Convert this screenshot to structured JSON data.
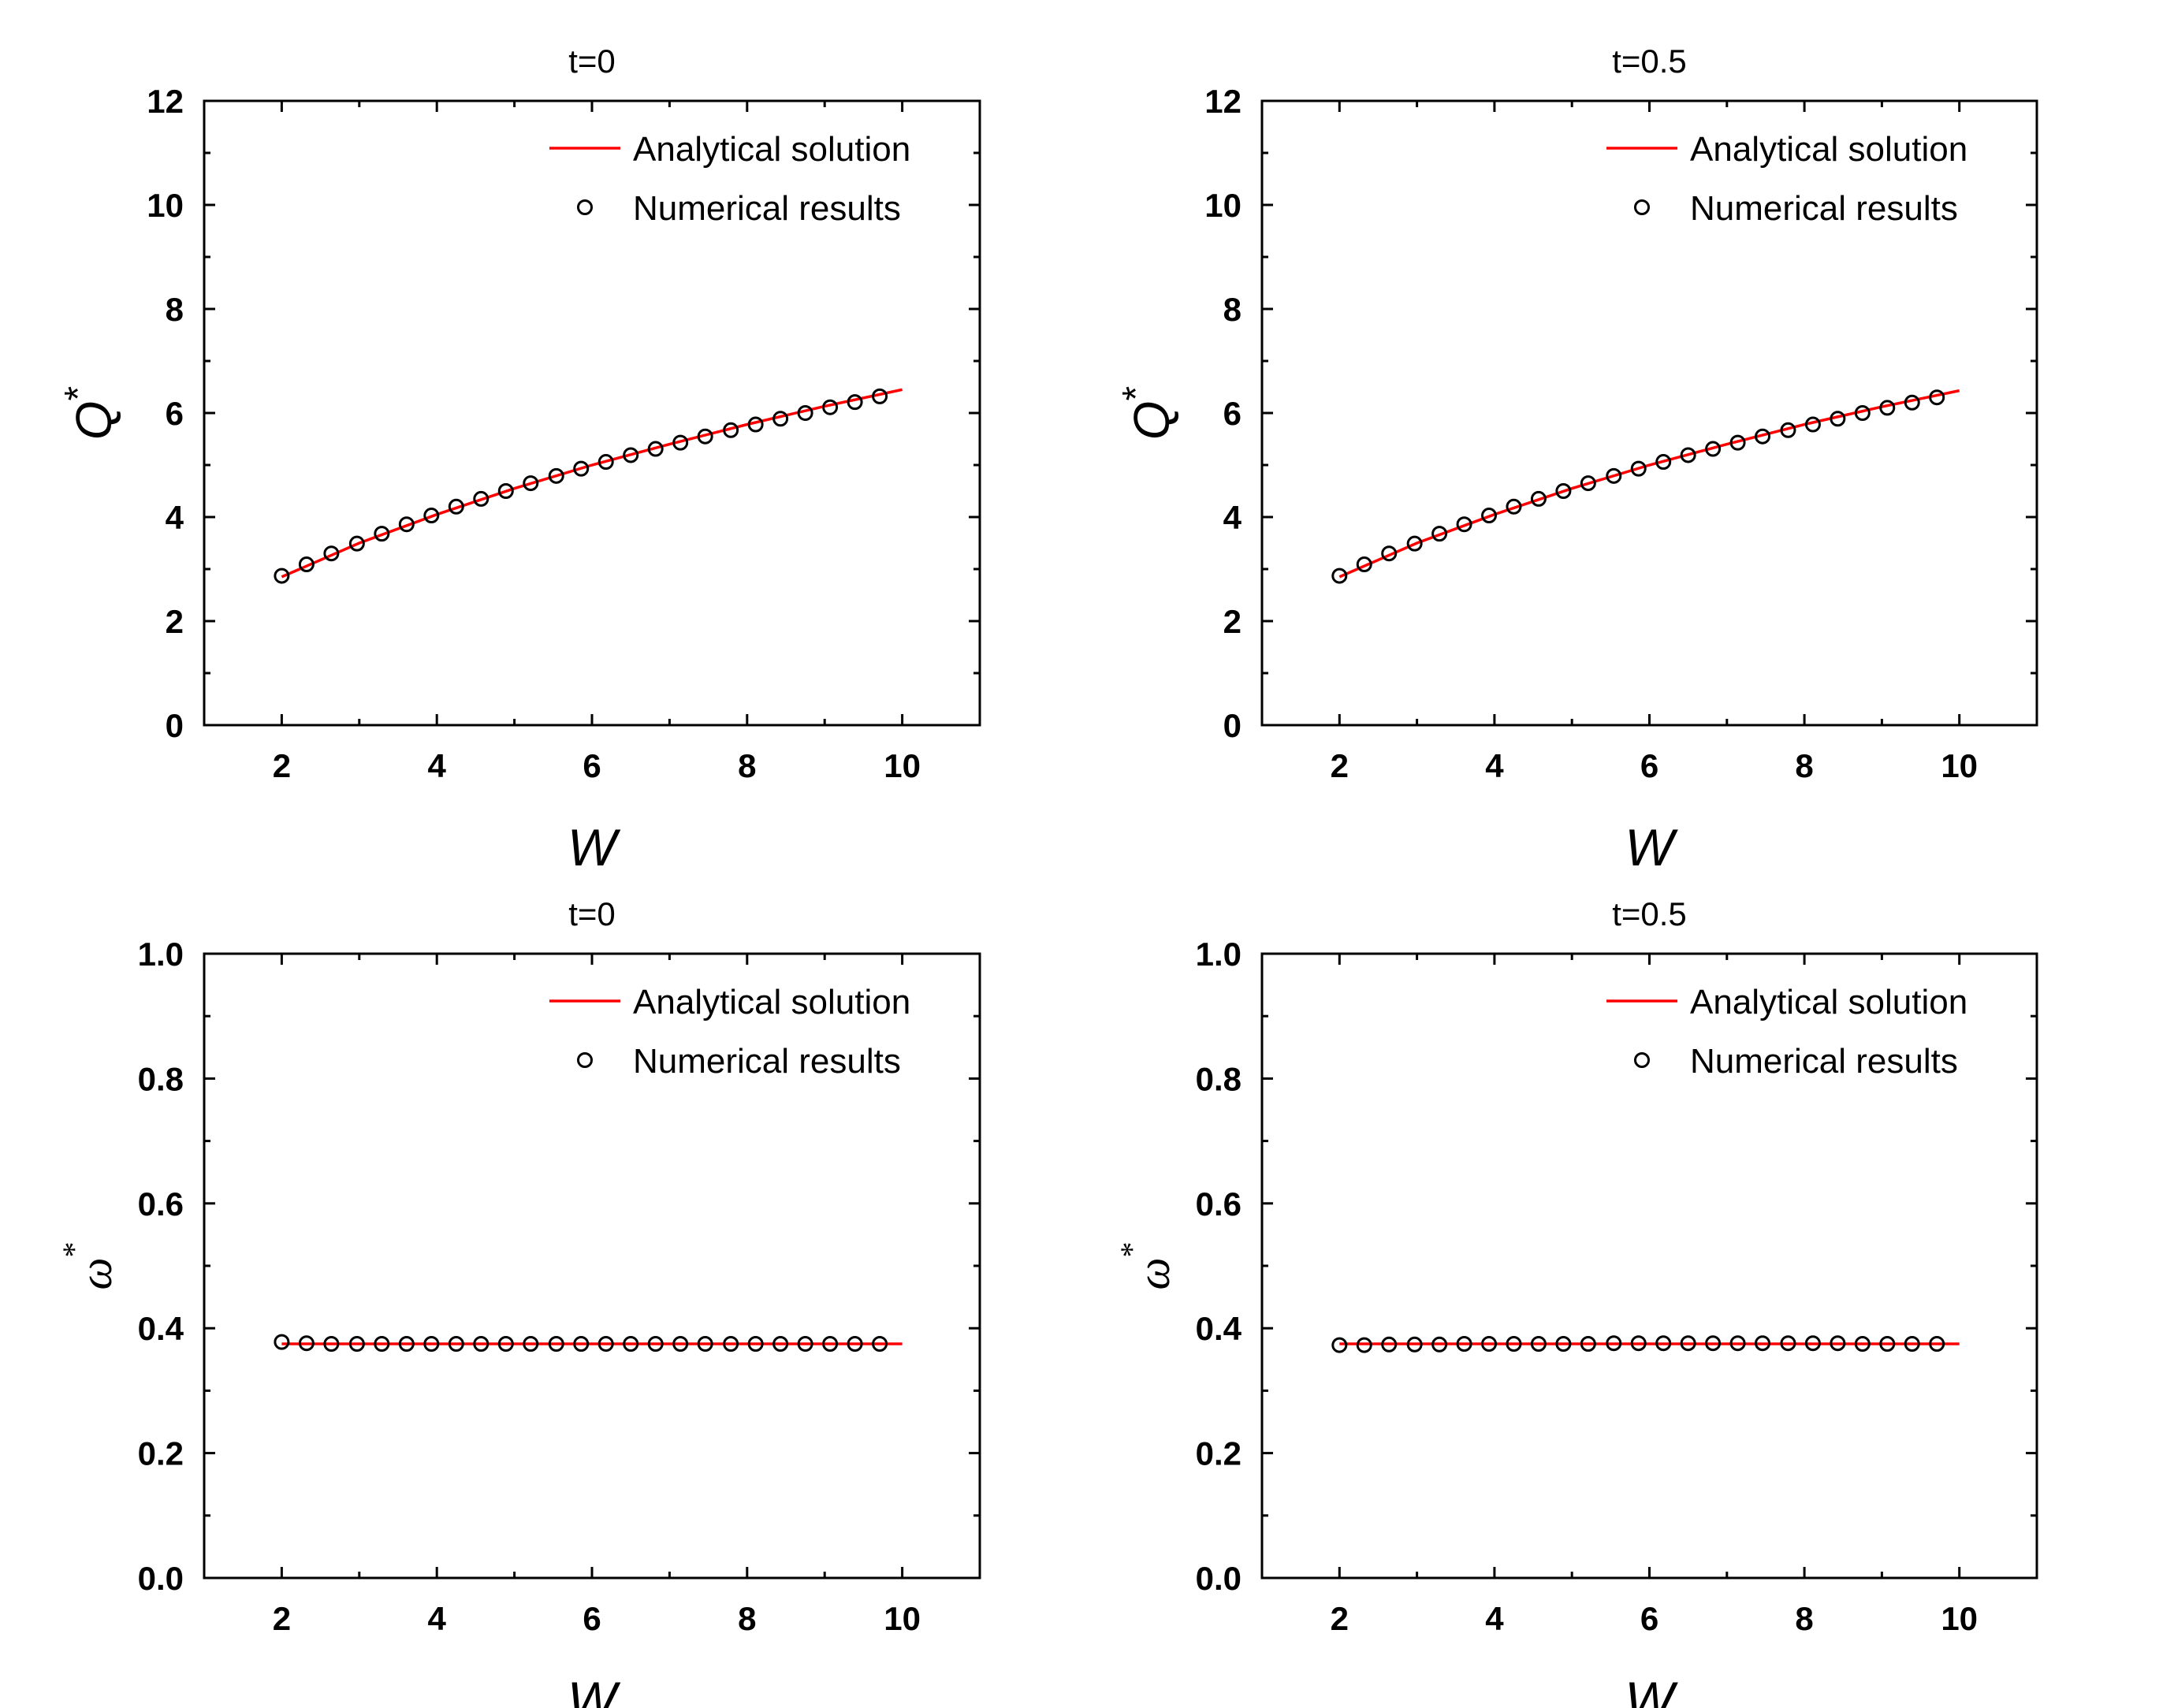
{
  "figure_title": "",
  "chart_data": [
    {
      "type": "line+scatter",
      "title": "t=0",
      "xlabel": "W",
      "ylabel": "Q",
      "ylabel_sup": "*",
      "xlim": [
        1,
        11
      ],
      "ylim": [
        0,
        12
      ],
      "xticks": [
        2,
        4,
        6,
        8,
        10
      ],
      "yticks": [
        0,
        2,
        4,
        6,
        8,
        10,
        12
      ],
      "ytick_labels": [
        "0",
        "2",
        "4",
        "6",
        "8",
        "10",
        "12"
      ],
      "legend": [
        "Analytical solution",
        "Numerical results"
      ],
      "legend_position": "top-right",
      "series": [
        {
          "name": "Analytical solution",
          "kind": "line",
          "color": "#ff0000",
          "x": [
            2,
            3,
            4,
            5,
            6,
            7,
            8,
            9,
            10
          ],
          "y": [
            2.85,
            3.5,
            4.05,
            4.55,
            5.0,
            5.4,
            5.78,
            6.13,
            6.45
          ]
        },
        {
          "name": "Numerical results",
          "kind": "scatter",
          "color": "#000000",
          "x": [
            2.0,
            2.32,
            2.64,
            2.97,
            3.29,
            3.61,
            3.93,
            4.25,
            4.57,
            4.89,
            5.21,
            5.54,
            5.86,
            6.18,
            6.5,
            6.82,
            7.14,
            7.46,
            7.79,
            8.11,
            8.43,
            8.75,
            9.07,
            9.39,
            9.71
          ],
          "y": [
            2.87,
            3.09,
            3.3,
            3.49,
            3.68,
            3.86,
            4.03,
            4.2,
            4.35,
            4.5,
            4.65,
            4.79,
            4.93,
            5.06,
            5.19,
            5.31,
            5.43,
            5.55,
            5.67,
            5.78,
            5.89,
            6.0,
            6.11,
            6.21,
            6.32
          ]
        }
      ]
    },
    {
      "type": "line+scatter",
      "title": "t=0.5",
      "xlabel": "W",
      "ylabel": "Q",
      "ylabel_sup": "*",
      "xlim": [
        1,
        11
      ],
      "ylim": [
        0,
        12
      ],
      "xticks": [
        2,
        4,
        6,
        8,
        10
      ],
      "yticks": [
        0,
        2,
        4,
        6,
        8,
        10,
        12
      ],
      "ytick_labels": [
        "0",
        "2",
        "4",
        "6",
        "8",
        "10",
        "12"
      ],
      "legend": [
        "Analytical solution",
        "Numerical results"
      ],
      "legend_position": "top-right",
      "series": [
        {
          "name": "Analytical solution",
          "kind": "line",
          "color": "#ff0000",
          "x": [
            2,
            3,
            4,
            5,
            6,
            7,
            8,
            9,
            10
          ],
          "y": [
            2.85,
            3.5,
            4.05,
            4.55,
            5.0,
            5.4,
            5.78,
            6.12,
            6.43
          ]
        },
        {
          "name": "Numerical results",
          "kind": "scatter",
          "color": "#000000",
          "x": [
            2.0,
            2.32,
            2.64,
            2.97,
            3.29,
            3.61,
            3.93,
            4.25,
            4.57,
            4.89,
            5.21,
            5.54,
            5.86,
            6.18,
            6.5,
            6.82,
            7.14,
            7.46,
            7.79,
            8.11,
            8.43,
            8.75,
            9.07,
            9.39,
            9.71
          ],
          "y": [
            2.87,
            3.09,
            3.3,
            3.49,
            3.68,
            3.86,
            4.03,
            4.2,
            4.35,
            4.5,
            4.65,
            4.79,
            4.93,
            5.06,
            5.19,
            5.31,
            5.43,
            5.55,
            5.67,
            5.78,
            5.89,
            6.0,
            6.1,
            6.2,
            6.3
          ]
        }
      ]
    },
    {
      "type": "line+scatter",
      "title": "t=0",
      "xlabel": "W",
      "ylabel": "ω",
      "ylabel_sup": "*",
      "xlim": [
        1,
        11
      ],
      "ylim": [
        0,
        1
      ],
      "xticks": [
        2,
        4,
        6,
        8,
        10
      ],
      "yticks": [
        0,
        0.2,
        0.4,
        0.6,
        0.8,
        1.0
      ],
      "ytick_labels": [
        "0.0",
        "0.2",
        "0.4",
        "0.6",
        "0.8",
        "1.0"
      ],
      "legend": [
        "Analytical solution",
        "Numerical results"
      ],
      "legend_position": "top-right",
      "series": [
        {
          "name": "Analytical solution",
          "kind": "line",
          "color": "#ff0000",
          "x": [
            2,
            10
          ],
          "y": [
            0.375,
            0.375
          ]
        },
        {
          "name": "Numerical results",
          "kind": "scatter",
          "color": "#000000",
          "x": [
            2.0,
            2.32,
            2.64,
            2.97,
            3.29,
            3.61,
            3.93,
            4.25,
            4.57,
            4.89,
            5.21,
            5.54,
            5.86,
            6.18,
            6.5,
            6.82,
            7.14,
            7.46,
            7.79,
            8.11,
            8.43,
            8.75,
            9.07,
            9.39,
            9.71
          ],
          "y": [
            0.378,
            0.376,
            0.375,
            0.375,
            0.375,
            0.375,
            0.375,
            0.375,
            0.375,
            0.375,
            0.375,
            0.375,
            0.375,
            0.375,
            0.375,
            0.375,
            0.375,
            0.375,
            0.375,
            0.375,
            0.375,
            0.375,
            0.375,
            0.375,
            0.375
          ]
        }
      ]
    },
    {
      "type": "line+scatter",
      "title": "t=0.5",
      "xlabel": "W",
      "ylabel": "ω",
      "ylabel_sup": "*",
      "xlim": [
        1,
        11
      ],
      "ylim": [
        0,
        1
      ],
      "xticks": [
        2,
        4,
        6,
        8,
        10
      ],
      "yticks": [
        0,
        0.2,
        0.4,
        0.6,
        0.8,
        1.0
      ],
      "ytick_labels": [
        "0.0",
        "0.2",
        "0.4",
        "0.6",
        "0.8",
        "1.0"
      ],
      "legend": [
        "Analytical solution",
        "Numerical results"
      ],
      "legend_position": "top-right",
      "series": [
        {
          "name": "Analytical solution",
          "kind": "line",
          "color": "#ff0000",
          "x": [
            2,
            10
          ],
          "y": [
            0.375,
            0.375
          ]
        },
        {
          "name": "Numerical results",
          "kind": "scatter",
          "color": "#000000",
          "x": [
            2.0,
            2.32,
            2.64,
            2.97,
            3.29,
            3.61,
            3.93,
            4.25,
            4.57,
            4.89,
            5.21,
            5.54,
            5.86,
            6.18,
            6.5,
            6.82,
            7.14,
            7.46,
            7.79,
            8.11,
            8.43,
            8.75,
            9.07,
            9.39,
            9.71
          ],
          "y": [
            0.373,
            0.373,
            0.374,
            0.374,
            0.374,
            0.375,
            0.375,
            0.375,
            0.375,
            0.375,
            0.375,
            0.376,
            0.376,
            0.376,
            0.376,
            0.376,
            0.376,
            0.376,
            0.376,
            0.376,
            0.376,
            0.375,
            0.375,
            0.375,
            0.375
          ]
        }
      ]
    }
  ]
}
